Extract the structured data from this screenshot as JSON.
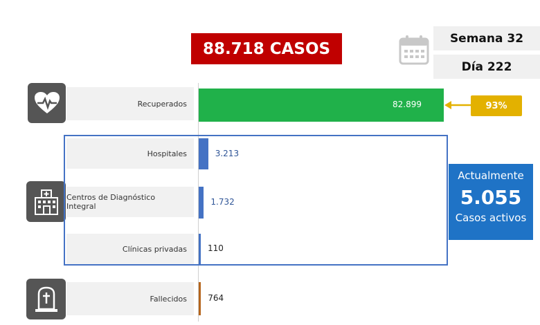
{
  "header": {
    "total_cases": "88.718 CASOS",
    "week": "Semana 32",
    "day": "Día 222"
  },
  "active": {
    "line1": "Actualmente",
    "value": "5.055",
    "line3": "Casos activos",
    "frame_color": "#4472c4",
    "box_color": "#1f73c6"
  },
  "recovered_percent": "93%",
  "icons": {
    "heart": "heart-pulse-icon",
    "hospital": "hospital-icon",
    "grave": "tombstone-icon",
    "calendar": "calendar-icon"
  },
  "chart_data": {
    "type": "bar",
    "orientation": "horizontal",
    "categories": [
      "Recuperados",
      "Hospitales",
      "Centros de Diagnóstico Integral",
      "Clínicas privadas",
      "Fallecidos"
    ],
    "values": [
      82899,
      3213,
      1732,
      110,
      764
    ],
    "value_labels": [
      "82.899",
      "3.213",
      "1.732",
      "110",
      "764"
    ],
    "colors": [
      "#20b14a",
      "#4472c4",
      "#4472c4",
      "#4472c4",
      "#b5651d"
    ],
    "xlim": [
      0,
      82899
    ]
  }
}
